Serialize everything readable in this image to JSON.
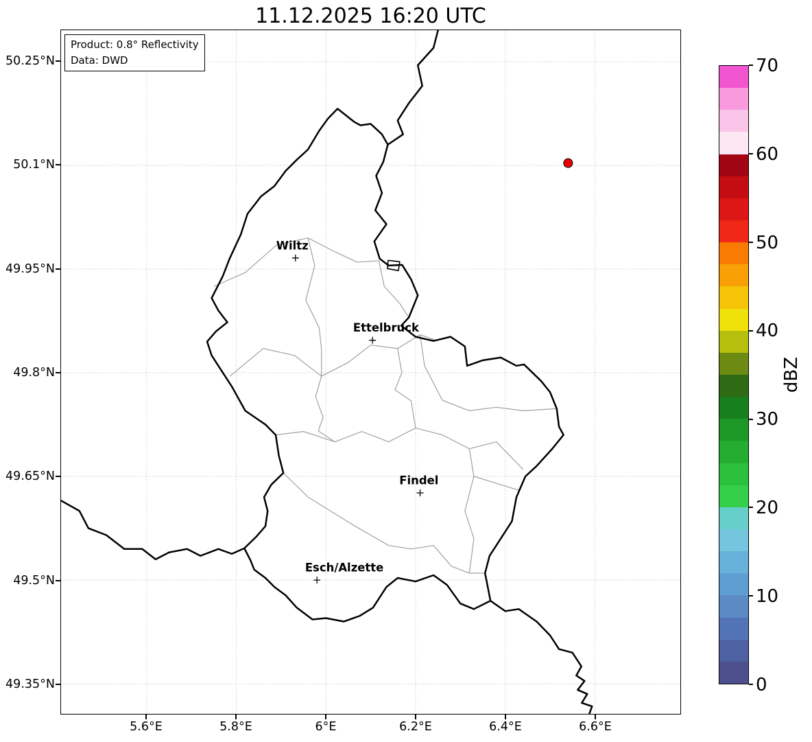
{
  "title": "11.12.2025 16:20 UTC",
  "info_box": {
    "product_line": "Product: 0.8° Reflectivity",
    "data_line": "Data: DWD"
  },
  "axes": {
    "x_ticks": [
      "5.6°E",
      "5.8°E",
      "6°E",
      "6.2°E",
      "6.4°E",
      "6.6°E"
    ],
    "y_ticks": [
      "50.25°N",
      "50.1°N",
      "49.95°N",
      "49.8°N",
      "49.65°N",
      "49.5°N",
      "49.35°N"
    ]
  },
  "map": {
    "cities": [
      {
        "name": "Wiltz"
      },
      {
        "name": "Ettelbruck"
      },
      {
        "name": "Findel"
      },
      {
        "name": "Esch/Alzette"
      }
    ],
    "radar_dot_color": "#e50000",
    "country_border_color": "#000000",
    "canton_border_color": "#a0a0a0"
  },
  "colorbar": {
    "label": "dBZ",
    "tick_labels_top_to_bottom": [
      "70",
      "60",
      "50",
      "40",
      "30",
      "20",
      "10",
      "0"
    ],
    "colors_bottom_to_top": [
      "#4e4f8d",
      "#4d61a3",
      "#5274b6",
      "#5b8ac5",
      "#5f9ed2",
      "#68b1da",
      "#74c5de",
      "#66cfc9",
      "#35cf4a",
      "#2cc13c",
      "#24ad31",
      "#1d9827",
      "#177f1e",
      "#2f6a15",
      "#6d8a12",
      "#b7bf0e",
      "#f0e00a",
      "#f5c307",
      "#f8a005",
      "#f97b02",
      "#ef2817",
      "#dd1616",
      "#c30d13",
      "#a10511",
      "#fce7f3",
      "#fbc5e9",
      "#f99ade",
      "#f255d0"
    ]
  }
}
